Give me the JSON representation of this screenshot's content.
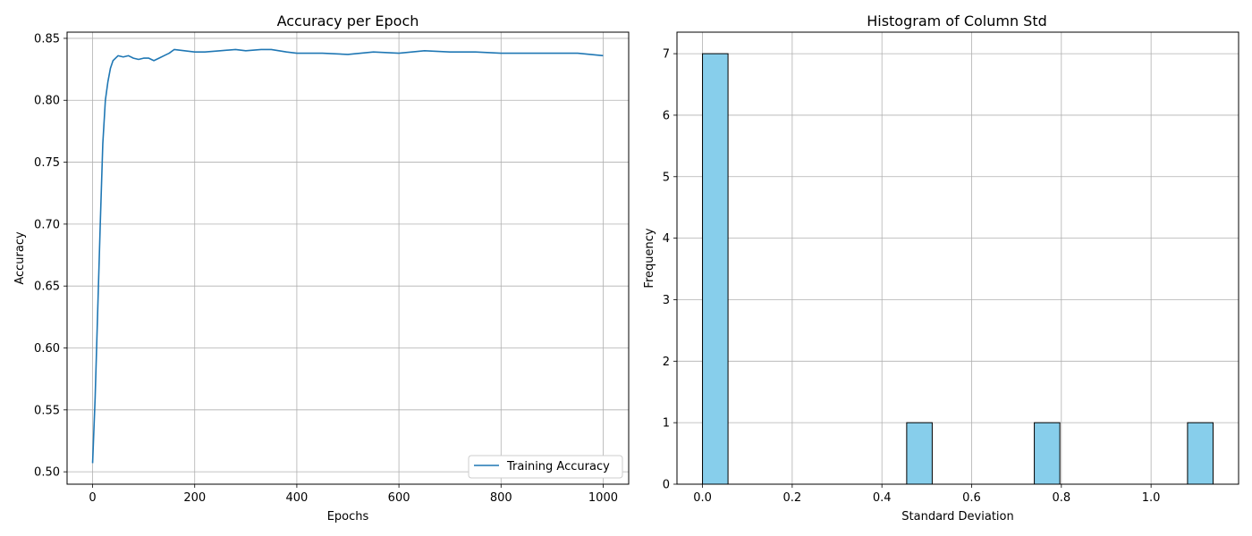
{
  "chart_data": [
    {
      "type": "line",
      "title": "Accuracy per Epoch",
      "xlabel": "Epochs",
      "ylabel": "Accuracy",
      "xlim": [
        -50,
        1050
      ],
      "ylim": [
        0.49,
        0.855
      ],
      "xticks": [
        0,
        200,
        400,
        600,
        800,
        1000
      ],
      "yticks": [
        0.5,
        0.55,
        0.6,
        0.65,
        0.7,
        0.75,
        0.8,
        0.85
      ],
      "ytick_labels": [
        "0.50",
        "0.55",
        "0.60",
        "0.65",
        "0.70",
        "0.75",
        "0.80",
        "0.85"
      ],
      "grid": true,
      "legend": {
        "placement": "lower-right"
      },
      "series": [
        {
          "name": "Training Accuracy",
          "color": "#1f77b4",
          "x": [
            0,
            5,
            10,
            15,
            20,
            25,
            30,
            35,
            40,
            45,
            50,
            60,
            70,
            80,
            90,
            100,
            110,
            120,
            130,
            140,
            150,
            160,
            180,
            200,
            220,
            250,
            280,
            300,
            330,
            350,
            380,
            400,
            450,
            500,
            550,
            600,
            650,
            700,
            750,
            800,
            850,
            900,
            950,
            1000
          ],
          "y": [
            0.507,
            0.56,
            0.63,
            0.7,
            0.765,
            0.8,
            0.815,
            0.826,
            0.832,
            0.834,
            0.836,
            0.835,
            0.836,
            0.834,
            0.833,
            0.834,
            0.834,
            0.832,
            0.834,
            0.836,
            0.838,
            0.841,
            0.84,
            0.839,
            0.839,
            0.84,
            0.841,
            0.84,
            0.841,
            0.841,
            0.839,
            0.838,
            0.838,
            0.837,
            0.839,
            0.838,
            0.84,
            0.839,
            0.839,
            0.838,
            0.838,
            0.838,
            0.838,
            0.836
          ]
        }
      ]
    },
    {
      "type": "bar",
      "title": "Histogram of Column Std",
      "xlabel": "Standard Deviation",
      "ylabel": "Frequency",
      "xlim": [
        -0.0569,
        1.1951
      ],
      "ylim": [
        0,
        7.35
      ],
      "xticks": [
        0.0,
        0.2,
        0.4,
        0.6,
        0.8,
        1.0
      ],
      "xtick_labels": [
        "0.0",
        "0.2",
        "0.4",
        "0.6",
        "0.8",
        "1.0"
      ],
      "yticks": [
        0,
        1,
        2,
        3,
        4,
        5,
        6,
        7
      ],
      "ytick_labels": [
        "0",
        "1",
        "2",
        "3",
        "4",
        "5",
        "6",
        "7"
      ],
      "grid": true,
      "bar_color": "#87ceeb",
      "edge_color": "#000000",
      "bins": [
        {
          "x0": 0.0,
          "x1": 0.0569,
          "count": 7
        },
        {
          "x0": 0.4552,
          "x1": 0.5121,
          "count": 1
        },
        {
          "x0": 0.7397,
          "x1": 0.7966,
          "count": 1
        },
        {
          "x0": 1.0813,
          "x1": 1.1382,
          "count": 1
        }
      ]
    }
  ]
}
